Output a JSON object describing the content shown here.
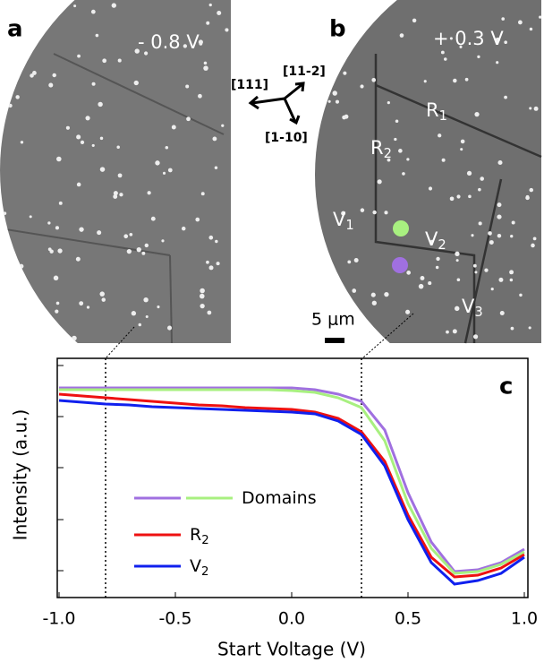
{
  "panels": {
    "a": {
      "label": "a",
      "voltage": "- 0.8 V"
    },
    "b": {
      "label": "b",
      "voltage": "+ 0.3 V",
      "regions": [
        {
          "text": "R",
          "sub": "1"
        },
        {
          "text": "R",
          "sub": "2"
        },
        {
          "text": "V",
          "sub": "1"
        },
        {
          "text": "V",
          "sub": "2"
        },
        {
          "text": "V",
          "sub": "3"
        }
      ],
      "scale_bar": "5 μm"
    },
    "directions": [
      "[111]",
      "[11-2]",
      "[1-10]"
    ]
  },
  "chart_data": {
    "type": "line",
    "panel_label": "c",
    "xlabel": "Start Voltage (V)",
    "ylabel": "Intensity (a.u.)",
    "x": [
      -1,
      -0.9,
      -0.8,
      -0.7,
      -0.6,
      -0.5,
      -0.4,
      -0.3,
      -0.2,
      -0.1,
      0,
      0.1,
      0.2,
      0.3,
      0.4,
      0.5,
      0.6,
      0.7,
      0.8,
      0.9,
      1
    ],
    "series": [
      {
        "color": "#a070e0",
        "values": [
          234,
          234,
          234,
          234,
          234,
          234,
          234,
          234,
          234,
          234,
          234,
          232,
          227,
          219,
          187,
          117,
          62,
          29,
          31,
          39,
          54
        ]
      },
      {
        "color": "#a8f080",
        "values": [
          232,
          232,
          232,
          232,
          232,
          232,
          232,
          232,
          232,
          232,
          231,
          229,
          223,
          212,
          175,
          105,
          55,
          27,
          29,
          37,
          51
        ]
      },
      {
        "color": "#ee1111",
        "values": [
          227,
          225,
          223,
          221,
          219,
          217,
          215,
          214,
          212,
          211,
          210,
          207,
          200,
          185,
          152,
          92,
          45,
          23,
          25,
          33,
          48
        ]
      },
      {
        "color": "#1020ee",
        "values": [
          220,
          218,
          216,
          215,
          213,
          212,
          211,
          210,
          209,
          208,
          207,
          205,
          197,
          182,
          147,
          87,
          39,
          15,
          19,
          27,
          45
        ]
      }
    ],
    "legend": [
      {
        "label": {
          "text": "Domains"
        },
        "series": [
          0,
          1
        ]
      },
      {
        "label": {
          "text": "R",
          "sub": "2"
        },
        "series": [
          2
        ]
      },
      {
        "label": {
          "text": "V",
          "sub": "2"
        },
        "series": [
          3
        ]
      }
    ],
    "vlines": [
      -0.8,
      0.3
    ],
    "xlim": [
      -1,
      1
    ],
    "xticks": [
      {
        "value": -1,
        "label": "-1.0"
      },
      -0.5,
      {
        "value": 0,
        "label": "0.0"
      },
      0.5,
      {
        "value": 1,
        "label": "1.0"
      }
    ],
    "ylim": [
      0,
      267
    ],
    "yticks": [
      30,
      87,
      145,
      202,
      259
    ]
  }
}
